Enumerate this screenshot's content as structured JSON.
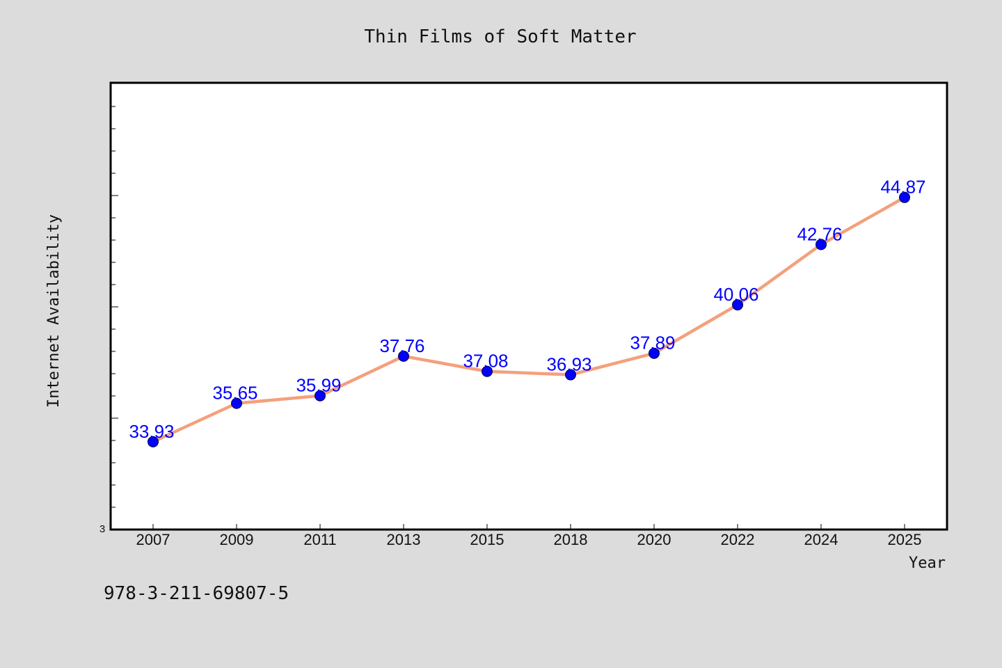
{
  "chart_data": {
    "type": "line",
    "title": "Thin Films of Soft Matter",
    "xlabel": "Year",
    "ylabel": "Internet Availability",
    "categories": [
      "2007",
      "2009",
      "2011",
      "2013",
      "2015",
      "2018",
      "2020",
      "2022",
      "2024",
      "2025"
    ],
    "series": [
      {
        "values": [
          33.93,
          35.65,
          35.99,
          37.76,
          37.08,
          36.93,
          37.89,
          40.06,
          42.76,
          44.87
        ]
      }
    ],
    "ylim": [
      30,
      50
    ],
    "y_tick_labels": [
      "3"
    ],
    "data_labels": [
      "33.93",
      "35.65",
      "35.99",
      "37.76",
      "37.08",
      "36.93",
      "37.89",
      "40.06",
      "42.76",
      "44.87"
    ],
    "grid": false,
    "legend": false
  },
  "footnote": "978-3-211-69807-5",
  "colors": {
    "background": "#dcdcdc",
    "plot_area": "#ffffff",
    "line": "#f4a07c",
    "marker": "#0000ff",
    "data_label": "#0000ff",
    "axis": "#000000"
  }
}
